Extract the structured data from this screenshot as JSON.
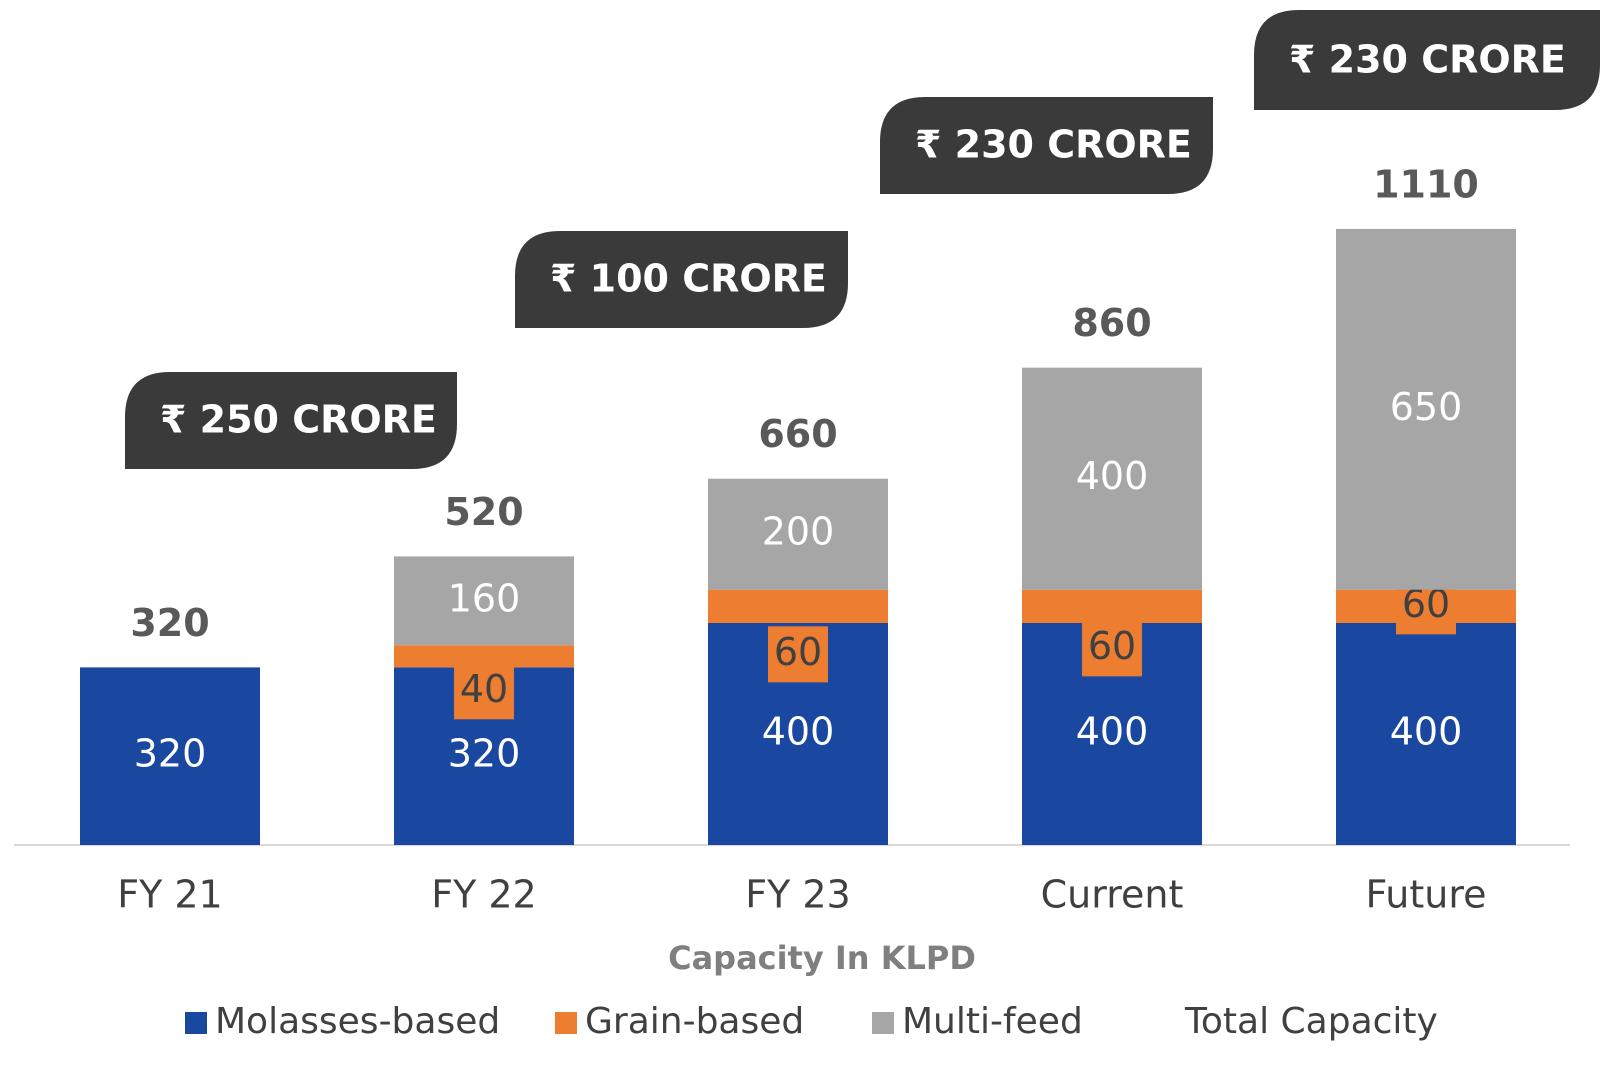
{
  "chart_data": {
    "type": "stacked_bar",
    "x_label": "Capacity In KLPD",
    "categories": [
      "FY 21",
      "FY 22",
      "FY 23",
      "Current",
      "Future"
    ],
    "series": [
      {
        "name": "Molasses-based",
        "color": "#1a47a0",
        "values": [
          320,
          320,
          400,
          400,
          400
        ]
      },
      {
        "name": "Grain-based",
        "color": "#ed7d31",
        "values": [
          null,
          40,
          60,
          60,
          60
        ]
      },
      {
        "name": "Multi-feed",
        "color": "#a6a6a6",
        "values": [
          null,
          160,
          200,
          400,
          650
        ]
      },
      {
        "name": "Total Capacity",
        "values": [
          320,
          520,
          660,
          860,
          1110
        ]
      }
    ],
    "annotations": [
      "₹ 250 CRORE",
      "₹ 100 CRORE",
      "₹ 230 CRORE",
      "₹ 230 CRORE"
    ]
  }
}
